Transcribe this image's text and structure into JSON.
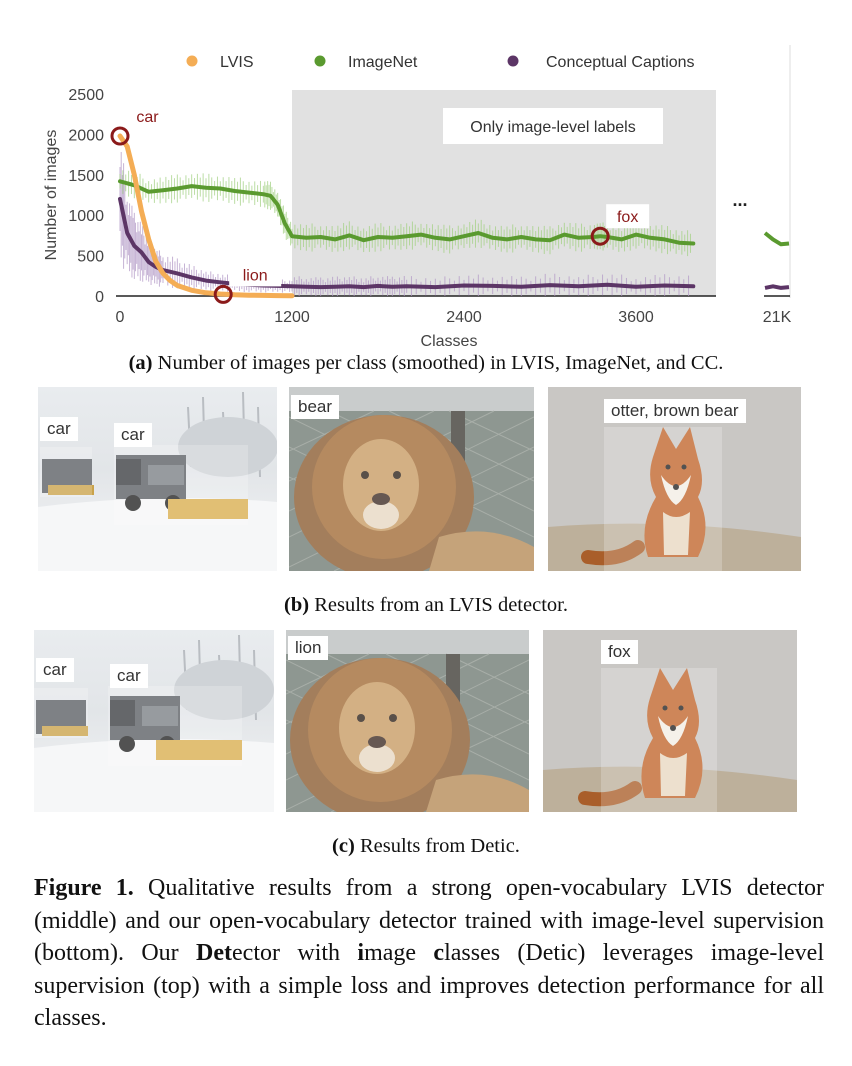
{
  "chart_data": {
    "type": "line",
    "ylabel": "Number of images",
    "xlabel": "Classes",
    "ylim": [
      0,
      2500
    ],
    "xlim": [
      0,
      4000
    ],
    "yticks": [
      "0",
      "500",
      "1000",
      "1500",
      "2000",
      "2500"
    ],
    "xticks": [
      "0",
      "1200",
      "2400",
      "3600"
    ],
    "xtick_extra": "21K",
    "ellipsis": "...",
    "shaded_region": {
      "x_start": 1200,
      "x_end": 4000,
      "label": "Only image-level labels"
    },
    "legend": [
      "LVIS",
      "ImageNet",
      "Conceptual Captions"
    ],
    "series": [
      {
        "name": "LVIS",
        "color": "#f4ad55",
        "x": [
          0,
          50,
          100,
          150,
          200,
          250,
          300,
          350,
          400,
          500,
          600,
          700,
          800,
          900,
          1000,
          1100,
          1200
        ],
        "y": [
          1980,
          1850,
          1500,
          1050,
          700,
          430,
          280,
          190,
          130,
          70,
          40,
          25,
          15,
          10,
          8,
          5,
          3
        ]
      },
      {
        "name": "ImageNet",
        "color": "#5a9a2f",
        "x": [
          0,
          100,
          200,
          300,
          400,
          500,
          600,
          700,
          800,
          900,
          1000,
          1050,
          1100,
          1150,
          1200,
          1300,
          1400,
          1500,
          1600,
          1700,
          1800,
          1900,
          2000,
          2100,
          2200,
          2300,
          2400,
          2500,
          2600,
          2700,
          2800,
          2900,
          3000,
          3100,
          3200,
          3300,
          3350,
          3400,
          3500,
          3600,
          3700,
          3800,
          3900,
          4000
        ],
        "y": [
          1420,
          1370,
          1290,
          1310,
          1330,
          1360,
          1340,
          1330,
          1300,
          1280,
          1260,
          1240,
          1130,
          900,
          740,
          720,
          730,
          700,
          750,
          690,
          730,
          720,
          740,
          760,
          720,
          700,
          740,
          780,
          720,
          700,
          730,
          700,
          690,
          760,
          720,
          730,
          740,
          730,
          700,
          760,
          720,
          700,
          660,
          650
        ],
        "tail_y": [
          780,
          700,
          640,
          650
        ]
      },
      {
        "name": "Conceptual Captions",
        "color": "#5c3566",
        "x": [
          0,
          50,
          100,
          150,
          200,
          250,
          300,
          400,
          500,
          600,
          700,
          800,
          900,
          1000,
          1100,
          1200,
          1300,
          1400,
          1500,
          1600,
          1700,
          1800,
          1900,
          2000,
          2200,
          2400,
          2600,
          2800,
          3000,
          3200,
          3400,
          3600,
          3800,
          4000
        ],
        "y": [
          1200,
          780,
          620,
          540,
          420,
          360,
          320,
          280,
          230,
          190,
          170,
          150,
          140,
          130,
          125,
          120,
          115,
          110,
          115,
          120,
          110,
          125,
          115,
          120,
          110,
          130,
          125,
          115,
          135,
          120,
          140,
          115,
          130,
          120
        ],
        "tail_y": [
          100,
          120,
          100,
          110
        ]
      }
    ],
    "annotations": [
      {
        "text": "car",
        "x": 0,
        "y": 1980
      },
      {
        "text": "lion",
        "x": 720,
        "y": 20
      },
      {
        "text": "fox",
        "x": 3350,
        "y": 740
      }
    ]
  },
  "captions": {
    "a_label": "(a)",
    "a_text": " Number of images per class (smoothed) in LVIS, ImageNet, and CC.",
    "b_label": "(b)",
    "b_text": " Results from an LVIS detector.",
    "c_label": "(c)",
    "c_text": " Results from Detic."
  },
  "row_b": {
    "car1": "car",
    "car2": "car",
    "lion_photo": "bear",
    "fox_photo": "otter, brown bear"
  },
  "row_c": {
    "car1": "car",
    "car2": "car",
    "lion_photo": "lion",
    "fox_photo": "fox"
  },
  "figure": {
    "label": "Figure 1.",
    "t1": " Qualitative results from a strong open-vocabulary LVIS detector (middle) and our open-vocabulary detector trained with image-level supervision (bottom). Our ",
    "det": "Det",
    "t2": "ector with ",
    "i": "i",
    "t3": "mage ",
    "c": "c",
    "t4": "lasses (Detic) leverages image-level supervision (top) with a simple loss and improves detection performance for all classes."
  }
}
